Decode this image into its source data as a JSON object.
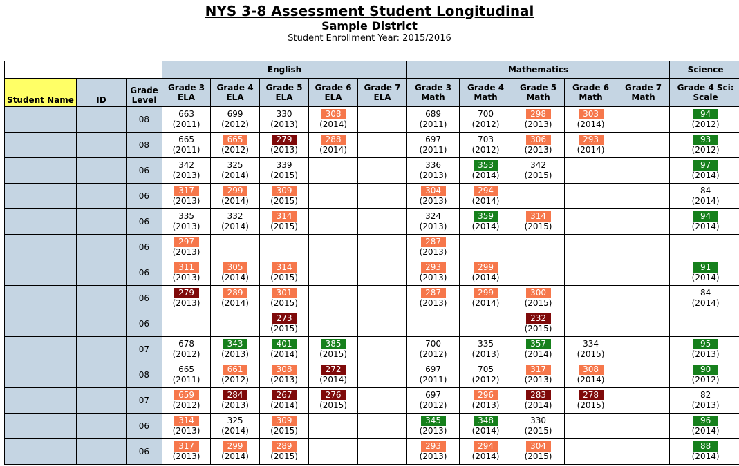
{
  "report": {
    "title": "NYS 3-8 Assessment Student Longitudinal",
    "district": "Sample District",
    "enrollment": "Student Enrollment Year: 2015/2016"
  },
  "colors": {
    "orange": "#f6774b",
    "dark_red": "#7f0a0a",
    "green": "#16801c",
    "header_blue": "#c5d5e3",
    "yellow": "#ffff66"
  },
  "groups": [
    "English",
    "Mathematics",
    "Science"
  ],
  "headers": {
    "student_name": "Student Name",
    "id": "ID",
    "grade_level": "Grade Level",
    "tests": [
      "Grade 3 ELA",
      "Grade 4 ELA",
      "Grade 5 ELA",
      "Grade 6 ELA",
      "Grade 7 ELA",
      "Grade 3 Math",
      "Grade 4 Math",
      "Grade 5 Math",
      "Grade 6 Math",
      "Grade 7 Math",
      "Grade 4 Sci: Scale"
    ]
  },
  "rows": [
    {
      "grade": "08",
      "scores": [
        {
          "v": "663",
          "y": "(2011)",
          "c": "none"
        },
        {
          "v": "699",
          "y": "(2012)",
          "c": "none"
        },
        {
          "v": "330",
          "y": "(2013)",
          "c": "none"
        },
        {
          "v": "308",
          "y": "(2014)",
          "c": "orange"
        },
        null,
        {
          "v": "689",
          "y": "(2011)",
          "c": "none"
        },
        {
          "v": "700",
          "y": "(2012)",
          "c": "none"
        },
        {
          "v": "298",
          "y": "(2013)",
          "c": "orange"
        },
        {
          "v": "303",
          "y": "(2014)",
          "c": "orange"
        },
        null,
        {
          "v": "94",
          "y": "(2012)",
          "c": "green"
        }
      ]
    },
    {
      "grade": "08",
      "scores": [
        {
          "v": "665",
          "y": "(2011)",
          "c": "none"
        },
        {
          "v": "665",
          "y": "(2012)",
          "c": "orange"
        },
        {
          "v": "279",
          "y": "(2013)",
          "c": "dred"
        },
        {
          "v": "288",
          "y": "(2014)",
          "c": "orange"
        },
        null,
        {
          "v": "697",
          "y": "(2011)",
          "c": "none"
        },
        {
          "v": "703",
          "y": "(2012)",
          "c": "none"
        },
        {
          "v": "306",
          "y": "(2013)",
          "c": "orange"
        },
        {
          "v": "293",
          "y": "(2014)",
          "c": "orange"
        },
        null,
        {
          "v": "93",
          "y": "(2012)",
          "c": "green"
        }
      ]
    },
    {
      "grade": "06",
      "scores": [
        {
          "v": "342",
          "y": "(2013)",
          "c": "none"
        },
        {
          "v": "325",
          "y": "(2014)",
          "c": "none"
        },
        {
          "v": "339",
          "y": "(2015)",
          "c": "none"
        },
        null,
        null,
        {
          "v": "336",
          "y": "(2013)",
          "c": "none"
        },
        {
          "v": "353",
          "y": "(2014)",
          "c": "green"
        },
        {
          "v": "342",
          "y": "(2015)",
          "c": "none"
        },
        null,
        null,
        {
          "v": "97",
          "y": "(2014)",
          "c": "green"
        }
      ]
    },
    {
      "grade": "06",
      "scores": [
        {
          "v": "317",
          "y": "(2013)",
          "c": "orange"
        },
        {
          "v": "299",
          "y": "(2014)",
          "c": "orange"
        },
        {
          "v": "309",
          "y": "(2015)",
          "c": "orange"
        },
        null,
        null,
        {
          "v": "304",
          "y": "(2013)",
          "c": "orange"
        },
        {
          "v": "294",
          "y": "(2014)",
          "c": "orange"
        },
        null,
        null,
        null,
        {
          "v": "84",
          "y": "(2014)",
          "c": "none"
        }
      ]
    },
    {
      "grade": "06",
      "scores": [
        {
          "v": "335",
          "y": "(2013)",
          "c": "none"
        },
        {
          "v": "332",
          "y": "(2014)",
          "c": "none"
        },
        {
          "v": "314",
          "y": "(2015)",
          "c": "orange"
        },
        null,
        null,
        {
          "v": "324",
          "y": "(2013)",
          "c": "none"
        },
        {
          "v": "359",
          "y": "(2014)",
          "c": "green"
        },
        {
          "v": "314",
          "y": "(2015)",
          "c": "orange"
        },
        null,
        null,
        {
          "v": "94",
          "y": "(2014)",
          "c": "green"
        }
      ]
    },
    {
      "grade": "06",
      "scores": [
        {
          "v": "297",
          "y": "(2013)",
          "c": "orange"
        },
        null,
        null,
        null,
        null,
        {
          "v": "287",
          "y": "(2013)",
          "c": "orange"
        },
        null,
        null,
        null,
        null,
        null
      ]
    },
    {
      "grade": "06",
      "scores": [
        {
          "v": "311",
          "y": "(2013)",
          "c": "orange"
        },
        {
          "v": "305",
          "y": "(2014)",
          "c": "orange"
        },
        {
          "v": "314",
          "y": "(2015)",
          "c": "orange"
        },
        null,
        null,
        {
          "v": "293",
          "y": "(2013)",
          "c": "orange"
        },
        {
          "v": "299",
          "y": "(2014)",
          "c": "orange"
        },
        null,
        null,
        null,
        {
          "v": "91",
          "y": "(2014)",
          "c": "green"
        }
      ]
    },
    {
      "grade": "06",
      "scores": [
        {
          "v": "279",
          "y": "(2013)",
          "c": "dred"
        },
        {
          "v": "289",
          "y": "(2014)",
          "c": "orange"
        },
        {
          "v": "301",
          "y": "(2015)",
          "c": "orange"
        },
        null,
        null,
        {
          "v": "287",
          "y": "(2013)",
          "c": "orange"
        },
        {
          "v": "299",
          "y": "(2014)",
          "c": "orange"
        },
        {
          "v": "300",
          "y": "(2015)",
          "c": "orange"
        },
        null,
        null,
        {
          "v": "84",
          "y": "(2014)",
          "c": "none"
        }
      ]
    },
    {
      "grade": "06",
      "scores": [
        null,
        null,
        {
          "v": "273",
          "y": "(2015)",
          "c": "dred"
        },
        null,
        null,
        null,
        null,
        {
          "v": "232",
          "y": "(2015)",
          "c": "dred"
        },
        null,
        null,
        null
      ]
    },
    {
      "grade": "07",
      "scores": [
        {
          "v": "678",
          "y": "(2012)",
          "c": "none"
        },
        {
          "v": "343",
          "y": "(2013)",
          "c": "green"
        },
        {
          "v": "401",
          "y": "(2014)",
          "c": "green"
        },
        {
          "v": "385",
          "y": "(2015)",
          "c": "green"
        },
        null,
        {
          "v": "700",
          "y": "(2012)",
          "c": "none"
        },
        {
          "v": "335",
          "y": "(2013)",
          "c": "none"
        },
        {
          "v": "357",
          "y": "(2014)",
          "c": "green"
        },
        {
          "v": "334",
          "y": "(2015)",
          "c": "none"
        },
        null,
        {
          "v": "95",
          "y": "(2013)",
          "c": "green"
        }
      ]
    },
    {
      "grade": "08",
      "scores": [
        {
          "v": "665",
          "y": "(2011)",
          "c": "none"
        },
        {
          "v": "661",
          "y": "(2012)",
          "c": "orange"
        },
        {
          "v": "308",
          "y": "(2013)",
          "c": "orange"
        },
        {
          "v": "272",
          "y": "(2014)",
          "c": "dred"
        },
        null,
        {
          "v": "697",
          "y": "(2011)",
          "c": "none"
        },
        {
          "v": "705",
          "y": "(2012)",
          "c": "none"
        },
        {
          "v": "317",
          "y": "(2013)",
          "c": "orange"
        },
        {
          "v": "308",
          "y": "(2014)",
          "c": "orange"
        },
        null,
        {
          "v": "90",
          "y": "(2012)",
          "c": "green"
        }
      ]
    },
    {
      "grade": "07",
      "scores": [
        {
          "v": "659",
          "y": "(2012)",
          "c": "orange"
        },
        {
          "v": "284",
          "y": "(2013)",
          "c": "dred"
        },
        {
          "v": "267",
          "y": "(2014)",
          "c": "dred"
        },
        {
          "v": "276",
          "y": "(2015)",
          "c": "dred"
        },
        null,
        {
          "v": "697",
          "y": "(2012)",
          "c": "none"
        },
        {
          "v": "296",
          "y": "(2013)",
          "c": "orange"
        },
        {
          "v": "283",
          "y": "(2014)",
          "c": "dred"
        },
        {
          "v": "278",
          "y": "(2015)",
          "c": "dred"
        },
        null,
        {
          "v": "82",
          "y": "(2013)",
          "c": "none"
        }
      ]
    },
    {
      "grade": "06",
      "scores": [
        {
          "v": "314",
          "y": "(2013)",
          "c": "orange"
        },
        {
          "v": "325",
          "y": "(2014)",
          "c": "none"
        },
        {
          "v": "309",
          "y": "(2015)",
          "c": "orange"
        },
        null,
        null,
        {
          "v": "345",
          "y": "(2013)",
          "c": "green"
        },
        {
          "v": "348",
          "y": "(2014)",
          "c": "green"
        },
        {
          "v": "330",
          "y": "(2015)",
          "c": "none"
        },
        null,
        null,
        {
          "v": "96",
          "y": "(2014)",
          "c": "green"
        }
      ]
    },
    {
      "grade": "06",
      "scores": [
        {
          "v": "317",
          "y": "(2013)",
          "c": "orange"
        },
        {
          "v": "299",
          "y": "(2014)",
          "c": "orange"
        },
        {
          "v": "289",
          "y": "(2015)",
          "c": "orange"
        },
        null,
        null,
        {
          "v": "293",
          "y": "(2013)",
          "c": "orange"
        },
        {
          "v": "294",
          "y": "(2014)",
          "c": "orange"
        },
        {
          "v": "304",
          "y": "(2015)",
          "c": "orange"
        },
        null,
        null,
        {
          "v": "88",
          "y": "(2014)",
          "c": "green"
        }
      ]
    }
  ]
}
